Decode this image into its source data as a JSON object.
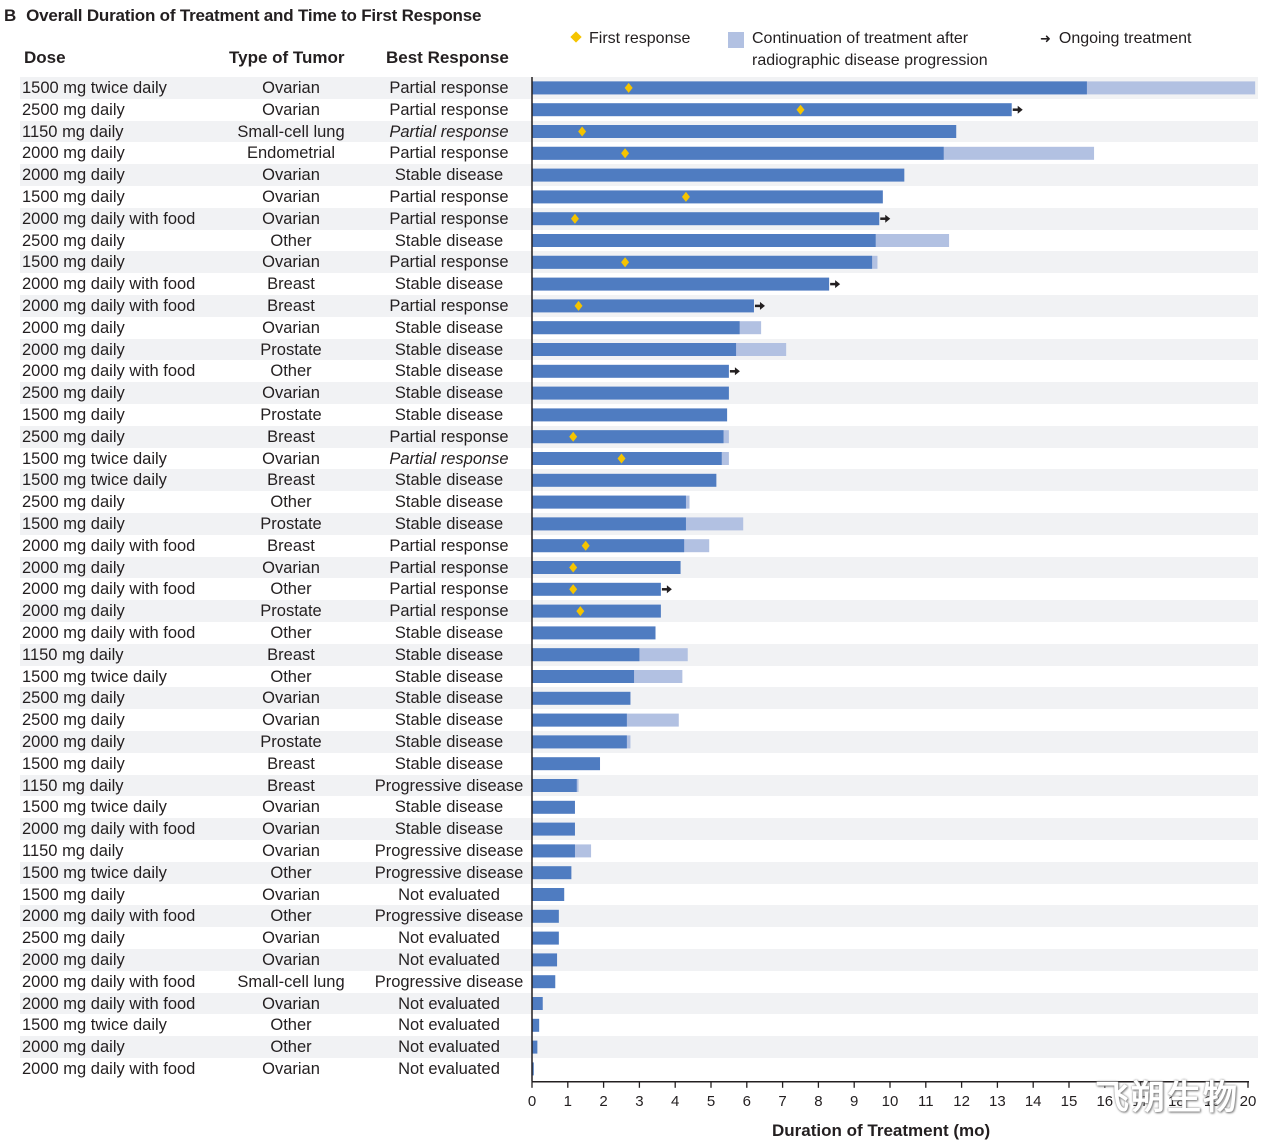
{
  "title": {
    "panel": "B",
    "text": "Overall Duration of Treatment and Time to First Response"
  },
  "columns": {
    "dose": "Dose",
    "tumor": "Type of Tumor",
    "response": "Best Response"
  },
  "legend": {
    "first_response": "First response",
    "continuation_line1": "Continuation of treatment after",
    "continuation_line2": "radiographic disease progression",
    "ongoing": "Ongoing treatment"
  },
  "colors": {
    "bar": "#4f7cc1",
    "continuation": "#b2c1e2",
    "first_response": "#f5c400",
    "arrow": "#231f20",
    "row_shade": "#f1f2f4"
  },
  "watermark": "飞朔生物",
  "chart_data": {
    "type": "bar",
    "orientation": "horizontal",
    "title": "Overall Duration of Treatment and Time to First Response",
    "xlabel": "Duration of Treatment (mo)",
    "ylabel": "",
    "xlim": [
      0,
      20
    ],
    "xticks": [
      "0",
      "1",
      "2",
      "3",
      "4",
      "5",
      "6",
      "7",
      "8",
      "9",
      "10",
      "11",
      "12",
      "13",
      "14",
      "15",
      "16",
      "17",
      "18",
      "19",
      "20"
    ],
    "grid": false,
    "legend_position": "top-right",
    "series": [
      {
        "name": "Duration of treatment",
        "key": "duration"
      },
      {
        "name": "Continuation of treatment after radiographic disease progression",
        "key": "continuation_end"
      },
      {
        "name": "First response",
        "key": "first_response"
      },
      {
        "name": "Ongoing treatment",
        "key": "ongoing"
      }
    ],
    "rows": [
      {
        "dose": "1500 mg twice daily",
        "tumor": "Ovarian",
        "response": "Partial response",
        "italic": false,
        "duration": 15.5,
        "continuation_end": 20.2,
        "first_response": 2.7,
        "ongoing": false
      },
      {
        "dose": "2500 mg daily",
        "tumor": "Ovarian",
        "response": "Partial response",
        "italic": false,
        "duration": 13.4,
        "continuation_end": null,
        "first_response": 7.5,
        "ongoing": true
      },
      {
        "dose": "1150 mg daily",
        "tumor": "Small-cell lung",
        "response": "Partial response",
        "italic": true,
        "duration": 11.85,
        "continuation_end": null,
        "first_response": 1.4,
        "ongoing": false
      },
      {
        "dose": "2000 mg daily",
        "tumor": "Endometrial",
        "response": "Partial response",
        "italic": false,
        "duration": 11.5,
        "continuation_end": 15.7,
        "first_response": 2.6,
        "ongoing": false
      },
      {
        "dose": "2000 mg daily",
        "tumor": "Ovarian",
        "response": "Stable disease",
        "italic": false,
        "duration": 10.4,
        "continuation_end": null,
        "first_response": null,
        "ongoing": false
      },
      {
        "dose": "1500 mg daily",
        "tumor": "Ovarian",
        "response": "Partial response",
        "italic": false,
        "duration": 9.8,
        "continuation_end": null,
        "first_response": 4.3,
        "ongoing": false
      },
      {
        "dose": "2000 mg daily with food",
        "tumor": "Ovarian",
        "response": "Partial response",
        "italic": false,
        "duration": 9.7,
        "continuation_end": null,
        "first_response": 1.2,
        "ongoing": true
      },
      {
        "dose": "2500 mg daily",
        "tumor": "Other",
        "response": "Stable disease",
        "italic": false,
        "duration": 9.6,
        "continuation_end": 11.65,
        "first_response": null,
        "ongoing": false
      },
      {
        "dose": "1500 mg daily",
        "tumor": "Ovarian",
        "response": "Partial response",
        "italic": false,
        "duration": 9.5,
        "continuation_end": 9.65,
        "first_response": 2.6,
        "ongoing": false
      },
      {
        "dose": "2000 mg daily with food",
        "tumor": "Breast",
        "response": "Stable disease",
        "italic": false,
        "duration": 8.3,
        "continuation_end": null,
        "first_response": null,
        "ongoing": true
      },
      {
        "dose": "2000 mg daily with food",
        "tumor": "Breast",
        "response": "Partial response",
        "italic": false,
        "duration": 6.2,
        "continuation_end": null,
        "first_response": 1.3,
        "ongoing": true
      },
      {
        "dose": "2000 mg daily",
        "tumor": "Ovarian",
        "response": "Stable disease",
        "italic": false,
        "duration": 5.8,
        "continuation_end": 6.4,
        "first_response": null,
        "ongoing": false
      },
      {
        "dose": "2000 mg daily",
        "tumor": "Prostate",
        "response": "Stable disease",
        "italic": false,
        "duration": 5.7,
        "continuation_end": 7.1,
        "first_response": null,
        "ongoing": false
      },
      {
        "dose": "2000 mg daily with food",
        "tumor": "Other",
        "response": "Stable disease",
        "italic": false,
        "duration": 5.5,
        "continuation_end": null,
        "first_response": null,
        "ongoing": true
      },
      {
        "dose": "2500 mg daily",
        "tumor": "Ovarian",
        "response": "Stable disease",
        "italic": false,
        "duration": 5.5,
        "continuation_end": null,
        "first_response": null,
        "ongoing": false
      },
      {
        "dose": "1500 mg daily",
        "tumor": "Prostate",
        "response": "Stable disease",
        "italic": false,
        "duration": 5.45,
        "continuation_end": null,
        "first_response": null,
        "ongoing": false
      },
      {
        "dose": "2500 mg daily",
        "tumor": "Breast",
        "response": "Partial response",
        "italic": false,
        "duration": 5.35,
        "continuation_end": 5.5,
        "first_response": 1.15,
        "ongoing": false
      },
      {
        "dose": "1500 mg twice daily",
        "tumor": "Ovarian",
        "response": "Partial response",
        "italic": true,
        "duration": 5.3,
        "continuation_end": 5.5,
        "first_response": 2.5,
        "ongoing": false
      },
      {
        "dose": "1500 mg twice daily",
        "tumor": "Breast",
        "response": "Stable disease",
        "italic": false,
        "duration": 5.15,
        "continuation_end": null,
        "first_response": null,
        "ongoing": false
      },
      {
        "dose": "2500 mg daily",
        "tumor": "Other",
        "response": "Stable disease",
        "italic": false,
        "duration": 4.3,
        "continuation_end": 4.4,
        "first_response": null,
        "ongoing": false
      },
      {
        "dose": "1500 mg daily",
        "tumor": "Prostate",
        "response": "Stable disease",
        "italic": false,
        "duration": 4.3,
        "continuation_end": 5.9,
        "first_response": null,
        "ongoing": false
      },
      {
        "dose": "2000 mg daily with food",
        "tumor": "Breast",
        "response": "Partial response",
        "italic": false,
        "duration": 4.25,
        "continuation_end": 4.95,
        "first_response": 1.5,
        "ongoing": false
      },
      {
        "dose": "2000 mg daily",
        "tumor": "Ovarian",
        "response": "Partial response",
        "italic": false,
        "duration": 4.15,
        "continuation_end": null,
        "first_response": 1.15,
        "ongoing": false
      },
      {
        "dose": "2000 mg daily with food",
        "tumor": "Other",
        "response": "Partial response",
        "italic": false,
        "duration": 3.6,
        "continuation_end": null,
        "first_response": 1.15,
        "ongoing": true
      },
      {
        "dose": "2000 mg daily",
        "tumor": "Prostate",
        "response": "Partial response",
        "italic": false,
        "duration": 3.6,
        "continuation_end": null,
        "first_response": 1.35,
        "ongoing": false
      },
      {
        "dose": "2000 mg daily with food",
        "tumor": "Other",
        "response": "Stable disease",
        "italic": false,
        "duration": 3.45,
        "continuation_end": null,
        "first_response": null,
        "ongoing": false
      },
      {
        "dose": "1150 mg daily",
        "tumor": "Breast",
        "response": "Stable disease",
        "italic": false,
        "duration": 3.0,
        "continuation_end": 4.35,
        "first_response": null,
        "ongoing": false
      },
      {
        "dose": "1500 mg twice daily",
        "tumor": "Other",
        "response": "Stable disease",
        "italic": false,
        "duration": 2.85,
        "continuation_end": 4.2,
        "first_response": null,
        "ongoing": false
      },
      {
        "dose": "2500 mg daily",
        "tumor": "Ovarian",
        "response": "Stable disease",
        "italic": false,
        "duration": 2.75,
        "continuation_end": null,
        "first_response": null,
        "ongoing": false
      },
      {
        "dose": "2500 mg daily",
        "tumor": "Ovarian",
        "response": "Stable disease",
        "italic": false,
        "duration": 2.65,
        "continuation_end": 4.1,
        "first_response": null,
        "ongoing": false
      },
      {
        "dose": "2000 mg daily",
        "tumor": "Prostate",
        "response": "Stable disease",
        "italic": false,
        "duration": 2.65,
        "continuation_end": 2.75,
        "first_response": null,
        "ongoing": false
      },
      {
        "dose": "1500 mg daily",
        "tumor": "Breast",
        "response": "Stable disease",
        "italic": false,
        "duration": 1.9,
        "continuation_end": null,
        "first_response": null,
        "ongoing": false
      },
      {
        "dose": "1150 mg daily",
        "tumor": "Breast",
        "response": "Progressive disease",
        "italic": false,
        "duration": 1.25,
        "continuation_end": 1.3,
        "first_response": null,
        "ongoing": false
      },
      {
        "dose": "1500 mg twice daily",
        "tumor": "Ovarian",
        "response": "Stable disease",
        "italic": false,
        "duration": 1.2,
        "continuation_end": null,
        "first_response": null,
        "ongoing": false
      },
      {
        "dose": "2000 mg daily with food",
        "tumor": "Ovarian",
        "response": "Stable disease",
        "italic": false,
        "duration": 1.2,
        "continuation_end": null,
        "first_response": null,
        "ongoing": false
      },
      {
        "dose": "1150 mg daily",
        "tumor": "Ovarian",
        "response": "Progressive disease",
        "italic": false,
        "duration": 1.2,
        "continuation_end": 1.65,
        "first_response": null,
        "ongoing": false
      },
      {
        "dose": "1500 mg twice daily",
        "tumor": "Other",
        "response": "Progressive disease",
        "italic": false,
        "duration": 1.1,
        "continuation_end": null,
        "first_response": null,
        "ongoing": false
      },
      {
        "dose": "1500 mg daily",
        "tumor": "Ovarian",
        "response": "Not evaluated",
        "italic": false,
        "duration": 0.9,
        "continuation_end": null,
        "first_response": null,
        "ongoing": false
      },
      {
        "dose": "2000 mg daily with food",
        "tumor": "Other",
        "response": "Progressive disease",
        "italic": false,
        "duration": 0.75,
        "continuation_end": null,
        "first_response": null,
        "ongoing": false
      },
      {
        "dose": "2500 mg daily",
        "tumor": "Ovarian",
        "response": "Not evaluated",
        "italic": false,
        "duration": 0.75,
        "continuation_end": null,
        "first_response": null,
        "ongoing": false
      },
      {
        "dose": "2000 mg daily",
        "tumor": "Ovarian",
        "response": "Not evaluated",
        "italic": false,
        "duration": 0.7,
        "continuation_end": null,
        "first_response": null,
        "ongoing": false
      },
      {
        "dose": "2000 mg daily with food",
        "tumor": "Small-cell lung",
        "response": "Progressive disease",
        "italic": false,
        "duration": 0.65,
        "continuation_end": null,
        "first_response": null,
        "ongoing": false
      },
      {
        "dose": "2000 mg daily with food",
        "tumor": "Ovarian",
        "response": "Not evaluated",
        "italic": false,
        "duration": 0.3,
        "continuation_end": null,
        "first_response": null,
        "ongoing": false
      },
      {
        "dose": "1500 mg twice daily",
        "tumor": "Other",
        "response": "Not evaluated",
        "italic": false,
        "duration": 0.2,
        "continuation_end": null,
        "first_response": null,
        "ongoing": false
      },
      {
        "dose": "2000 mg daily",
        "tumor": "Other",
        "response": "Not evaluated",
        "italic": false,
        "duration": 0.15,
        "continuation_end": null,
        "first_response": null,
        "ongoing": false
      },
      {
        "dose": "2000 mg daily with food",
        "tumor": "Ovarian",
        "response": "Not evaluated",
        "italic": false,
        "duration": 0.05,
        "continuation_end": null,
        "first_response": null,
        "ongoing": false
      }
    ]
  }
}
